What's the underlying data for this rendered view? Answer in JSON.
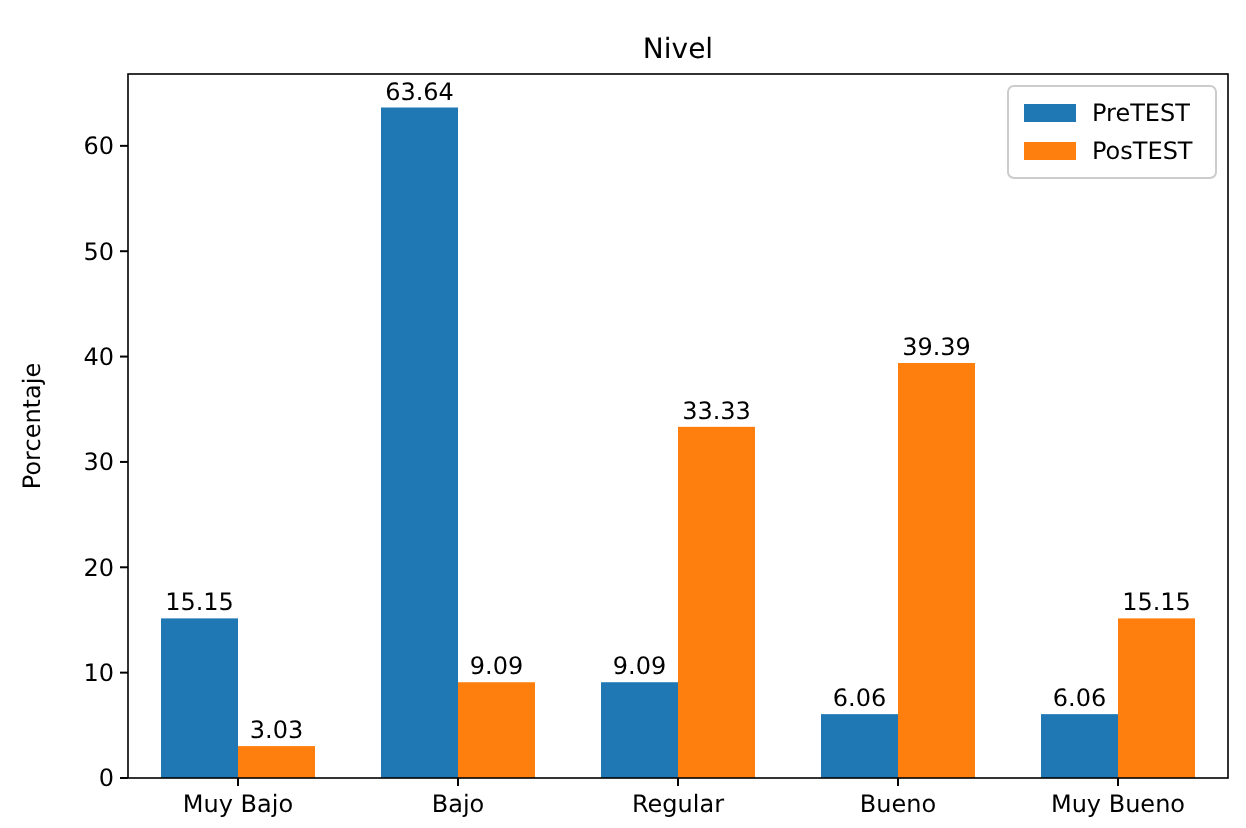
{
  "chart_data": {
    "type": "bar",
    "title": "Nivel",
    "ylabel": "Porcentaje",
    "categories": [
      "Muy Bajo",
      "Bajo",
      "Regular",
      "Bueno",
      "Muy Bueno"
    ],
    "series": [
      {
        "name": "PreTEST",
        "color": "#1f77b4",
        "values": [
          15.15,
          63.64,
          9.09,
          6.06,
          6.06
        ]
      },
      {
        "name": "PosTEST",
        "color": "#ff7f0e",
        "values": [
          3.03,
          9.09,
          33.33,
          39.39,
          15.15
        ]
      }
    ],
    "ylim": [
      0,
      66.82
    ],
    "yticks": [
      0,
      10,
      20,
      30,
      40,
      50,
      60
    ],
    "grid": false,
    "legend": "top right",
    "data_labels": true
  }
}
